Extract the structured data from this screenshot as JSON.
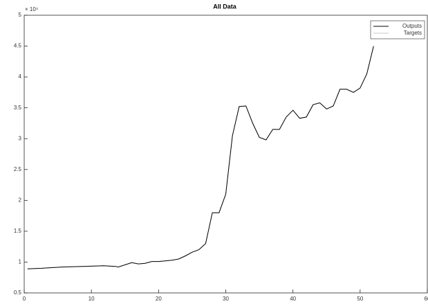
{
  "chart_data": {
    "type": "line",
    "title": "All Data",
    "y_multiplier": "× 10⁴",
    "x": [
      0.5,
      2.6,
      5.6,
      8.7,
      11.8,
      13.6,
      14,
      16,
      17,
      18,
      19,
      20,
      21,
      22,
      23,
      24,
      25,
      26,
      27,
      28,
      29,
      30,
      31,
      32,
      33,
      34,
      35,
      36,
      37,
      38,
      39,
      40,
      41,
      42,
      43,
      44,
      45,
      46,
      47,
      48,
      49,
      50,
      51,
      52
    ],
    "series": [
      {
        "name": "Outputs",
        "color": "#000000",
        "values": [
          0.89,
          0.9,
          0.92,
          0.93,
          0.94,
          0.93,
          0.92,
          0.99,
          0.97,
          0.98,
          1.01,
          1.01,
          1.02,
          1.03,
          1.05,
          1.1,
          1.16,
          1.2,
          1.3,
          1.8,
          1.8,
          2.1,
          3.05,
          3.52,
          3.53,
          3.25,
          3.02,
          2.98,
          3.15,
          3.15,
          3.35,
          3.46,
          3.33,
          3.35,
          3.55,
          3.58,
          3.48,
          3.53,
          3.8,
          3.8,
          3.75,
          3.82,
          4.05,
          4.5
        ]
      },
      {
        "name": "Targets",
        "color": "#c8c8c8",
        "values": [
          0.89,
          0.9,
          0.92,
          0.93,
          0.94,
          0.93,
          0.92,
          0.99,
          0.97,
          0.98,
          1.01,
          1.01,
          1.02,
          1.03,
          1.05,
          1.1,
          1.16,
          1.2,
          1.3,
          1.8,
          1.8,
          2.1,
          3.05,
          3.52,
          3.53,
          3.25,
          3.02,
          2.98,
          3.15,
          3.15,
          3.35,
          3.46,
          3.33,
          3.35,
          3.55,
          3.58,
          3.48,
          3.53,
          3.8,
          3.8,
          3.75,
          3.82,
          4.05,
          4.5
        ]
      }
    ],
    "xlim": [
      0,
      60
    ],
    "xticks": [
      0,
      10,
      20,
      30,
      40,
      50,
      60
    ],
    "ylim": [
      0.5,
      5
    ],
    "yticks": [
      0.5,
      1,
      1.5,
      2,
      2.5,
      3,
      3.5,
      4,
      4.5,
      5
    ],
    "grid": false,
    "legend": "upper right"
  }
}
